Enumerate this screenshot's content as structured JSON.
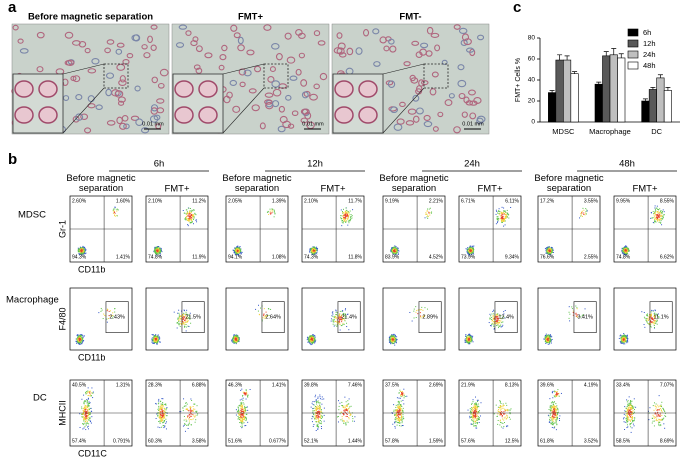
{
  "panel_a": {
    "label": "a",
    "titles": [
      "Before magnetic separation",
      "FMT+",
      "FMT-"
    ],
    "scale": "0.01 mm"
  },
  "chart_data": {
    "type": "bar",
    "panel_label": "c",
    "y_label": "FMT+ Cells %",
    "categories": [
      "MDSC",
      "Macrophage",
      "DC"
    ],
    "series": [
      {
        "name": "6h",
        "color": "#000000",
        "values": [
          28,
          36,
          20
        ],
        "errors": [
          2,
          2,
          2
        ]
      },
      {
        "name": "12h",
        "color": "#595959",
        "values": [
          59,
          63,
          31
        ],
        "errors": [
          5,
          4,
          2
        ]
      },
      {
        "name": "24h",
        "color": "#bfbfbf",
        "values": [
          59,
          64,
          42
        ],
        "errors": [
          4,
          6,
          3
        ]
      },
      {
        "name": "48h",
        "color": "#ffffff",
        "values": [
          46,
          61,
          30
        ],
        "errors": [
          2,
          4,
          3
        ]
      }
    ],
    "ylim": [
      0,
      80
    ],
    "yticks": [
      0,
      20,
      40,
      60,
      80
    ]
  },
  "panel_b": {
    "label": "b",
    "times": [
      "6h",
      "12h",
      "24h",
      "48h"
    ],
    "columns": [
      "Before magnetic separation",
      "FMT+"
    ],
    "rows": [
      {
        "name": "MDSC",
        "y_axis": "Gr-1",
        "x_axis": "CD11b",
        "plots": [
          [
            "2.60%",
            "1.60%",
            "94.3%",
            "1.41%"
          ],
          [
            "2.10%",
            "11.2%",
            "74.8%",
            "11.9%"
          ],
          [
            "2.05%",
            "1.39%",
            "94.1%",
            "1.08%"
          ],
          [
            "2.10%",
            "11.7%",
            "74.3%",
            "11.8%"
          ],
          [
            "9.19%",
            "2.21%",
            "83.9%",
            "4.52%"
          ],
          [
            "6.71%",
            "6.11%",
            "73.9%",
            "9.34%"
          ],
          [
            "17.2%",
            "3.55%",
            "76.6%",
            "2.55%"
          ],
          [
            "9.95%",
            "8.55%",
            "74.8%",
            "6.62%"
          ]
        ]
      },
      {
        "name": "Macrophage",
        "y_axis": "F4/80",
        "x_axis": "CD11b",
        "plots": [
          [
            "2.43%"
          ],
          [
            "21.5%"
          ],
          [
            "2.64%"
          ],
          [
            "21.4%"
          ],
          [
            "2.89%"
          ],
          [
            "12.4%"
          ],
          [
            "3.41%"
          ],
          [
            "11.1%"
          ]
        ]
      },
      {
        "name": "DC",
        "y_axis": "MHCII",
        "x_axis": "CD11C",
        "plots": [
          [
            "40.5%",
            "1.31%",
            "57.4%",
            "0.791%"
          ],
          [
            "28.3%",
            "6.88%",
            "60.3%",
            "3.58%"
          ],
          [
            "46.3%",
            "1.41%",
            "51.6%",
            "0.677%"
          ],
          [
            "39.8%",
            "7.46%",
            "52.1%",
            "1.44%"
          ],
          [
            "37.5%",
            "2.69%",
            "57.8%",
            "1.59%"
          ],
          [
            "21.9%",
            "8.13%",
            "57.6%",
            "12.5%"
          ],
          [
            "39.6%",
            "4.19%",
            "61.8%",
            "3.52%"
          ],
          [
            "33.4%",
            "7.07%",
            "58.5%",
            "8.69%"
          ]
        ]
      }
    ]
  }
}
